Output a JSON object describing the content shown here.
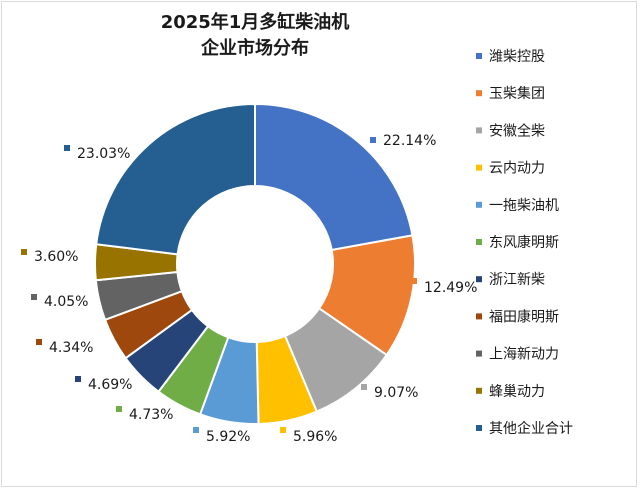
{
  "chart_data": {
    "type": "donut",
    "title_line1": "2025年1月多缸柴油机",
    "title_line2": "企业市场分布",
    "categories": [
      "潍柴控股",
      "玉柴集团",
      "安徽全柴",
      "云内动力",
      "一拖柴油机",
      "东风康明斯",
      "浙江新柴",
      "福田康明斯",
      "上海新动力",
      "蜂巢动力",
      "其他企业合计"
    ],
    "values": [
      22.14,
      12.49,
      9.07,
      5.96,
      5.92,
      4.73,
      4.69,
      4.34,
      4.05,
      3.6,
      23.03
    ],
    "value_labels": [
      "22.14%",
      "12.49%",
      "9.07%",
      "5.96%",
      "5.92%",
      "4.73%",
      "4.69%",
      "4.34%",
      "4.05%",
      "3.60%",
      "23.03%"
    ],
    "colors": [
      "#4472c4",
      "#ed7d31",
      "#a5a5a5",
      "#ffc000",
      "#5b9bd5",
      "#70ad47",
      "#264478",
      "#9e480e",
      "#636363",
      "#997300",
      "#255e91"
    ],
    "legend_position": "right"
  }
}
